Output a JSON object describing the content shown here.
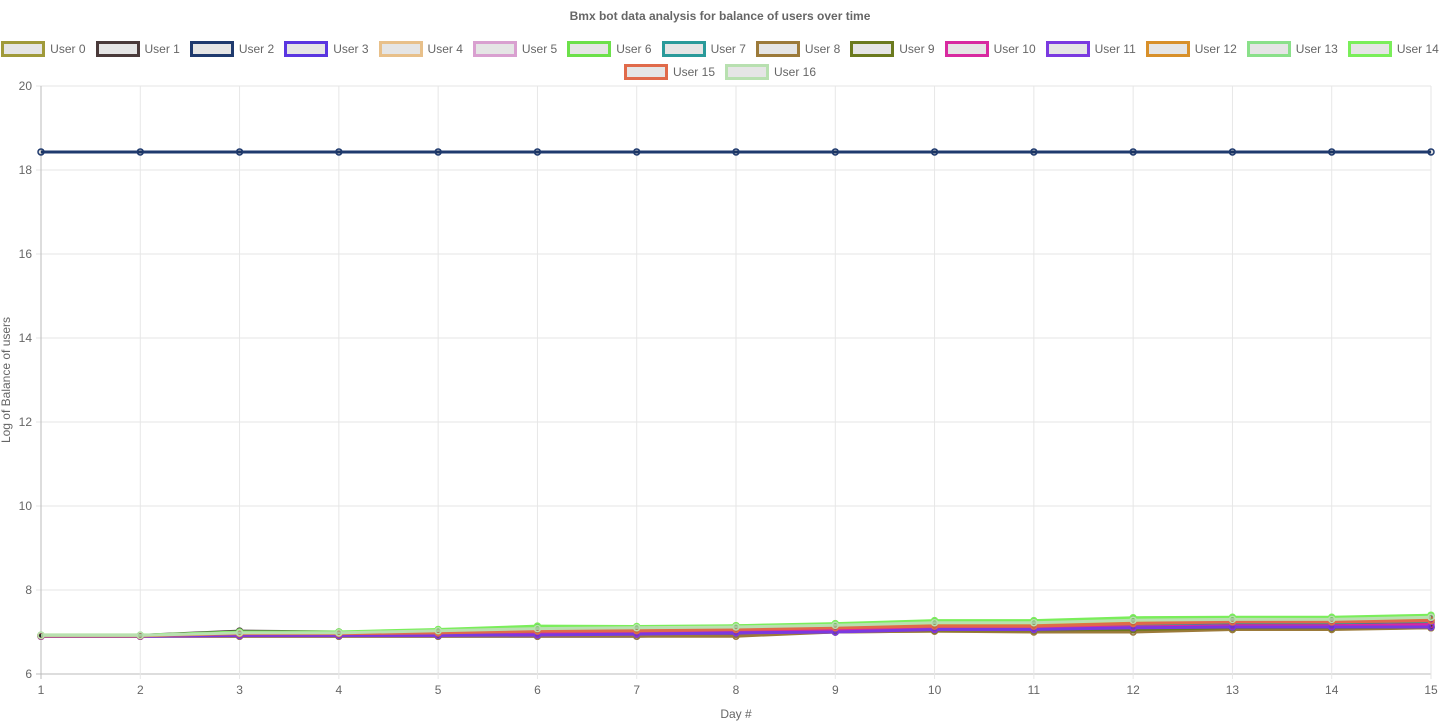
{
  "chart_data": {
    "type": "line",
    "title": "Bmx bot data analysis for balance of users over time",
    "xlabel": "Day #",
    "ylabel": "Log of Balance of users",
    "x": [
      1,
      2,
      3,
      4,
      5,
      6,
      7,
      8,
      9,
      10,
      11,
      12,
      13,
      14,
      15
    ],
    "ylim": [
      6,
      20
    ],
    "yticks": [
      6,
      8,
      10,
      12,
      14,
      16,
      18,
      20
    ],
    "grid": true,
    "legend_position": "top",
    "series": [
      {
        "name": "User 0",
        "color": "#a09a3a",
        "values": [
          6.91,
          6.91,
          6.93,
          6.93,
          6.93,
          6.95,
          6.95,
          6.96,
          7.0,
          7.02,
          7.02,
          7.05,
          7.06,
          7.08,
          7.1
        ]
      },
      {
        "name": "User 1",
        "color": "#4a3a3a",
        "values": [
          6.92,
          6.92,
          7.02,
          7.0,
          7.0,
          7.08,
          7.08,
          7.08,
          7.1,
          7.12,
          7.12,
          7.15,
          7.2,
          7.2,
          7.22
        ]
      },
      {
        "name": "User 2",
        "color": "#1f3a6e",
        "values": [
          18.43,
          18.43,
          18.43,
          18.43,
          18.43,
          18.43,
          18.43,
          18.43,
          18.43,
          18.43,
          18.43,
          18.43,
          18.43,
          18.43,
          18.43
        ]
      },
      {
        "name": "User 3",
        "color": "#5a36e0",
        "values": [
          6.9,
          6.9,
          6.9,
          6.9,
          6.9,
          6.9,
          6.9,
          6.95,
          7.0,
          7.05,
          7.05,
          7.08,
          7.15,
          7.15,
          7.15
        ]
      },
      {
        "name": "User 4",
        "color": "#e8c08a",
        "values": [
          6.92,
          6.92,
          6.98,
          6.98,
          7.02,
          7.06,
          7.08,
          7.15,
          7.18,
          7.22,
          7.22,
          7.28,
          7.3,
          7.3,
          7.35
        ]
      },
      {
        "name": "User 5",
        "color": "#d9a0d0",
        "values": [
          6.91,
          6.91,
          6.95,
          6.95,
          6.97,
          7.0,
          7.02,
          7.05,
          7.1,
          7.15,
          7.15,
          7.2,
          7.25,
          7.25,
          7.3
        ]
      },
      {
        "name": "User 6",
        "color": "#6ce04a",
        "values": [
          6.92,
          6.92,
          6.99,
          6.99,
          7.05,
          7.12,
          7.12,
          7.14,
          7.18,
          7.25,
          7.25,
          7.32,
          7.33,
          7.33,
          7.38
        ]
      },
      {
        "name": "User 7",
        "color": "#2a9a9a",
        "values": [
          6.91,
          6.91,
          6.96,
          6.96,
          6.98,
          7.02,
          7.04,
          7.06,
          7.08,
          7.12,
          7.12,
          7.18,
          7.22,
          7.22,
          7.25
        ]
      },
      {
        "name": "User 8",
        "color": "#9c7a3a",
        "values": [
          6.9,
          6.9,
          6.9,
          6.9,
          6.9,
          6.9,
          6.9,
          6.9,
          7.0,
          7.02,
          7.0,
          7.0,
          7.06,
          7.06,
          7.1
        ]
      },
      {
        "name": "User 9",
        "color": "#6b7a1e",
        "values": [
          6.91,
          6.91,
          6.95,
          6.95,
          6.95,
          7.0,
          7.0,
          7.02,
          7.04,
          7.05,
          7.05,
          7.06,
          7.1,
          7.1,
          7.12
        ]
      },
      {
        "name": "User 10",
        "color": "#d82aa0",
        "values": [
          6.9,
          6.9,
          6.92,
          6.92,
          6.92,
          6.95,
          6.98,
          7.0,
          7.05,
          7.08,
          7.1,
          7.12,
          7.15,
          7.15,
          7.18
        ]
      },
      {
        "name": "User 11",
        "color": "#7a3ae0",
        "values": [
          6.9,
          6.9,
          6.92,
          6.92,
          6.92,
          6.93,
          6.95,
          6.98,
          7.0,
          7.06,
          7.06,
          7.1,
          7.12,
          7.12,
          7.12
        ]
      },
      {
        "name": "User 12",
        "color": "#d8902a",
        "values": [
          6.91,
          6.91,
          6.97,
          6.97,
          6.99,
          7.03,
          7.05,
          7.1,
          7.15,
          7.18,
          7.18,
          7.22,
          7.25,
          7.25,
          7.28
        ]
      },
      {
        "name": "User 13",
        "color": "#8ae08a",
        "values": [
          6.92,
          6.92,
          6.99,
          6.99,
          7.04,
          7.1,
          7.1,
          7.13,
          7.17,
          7.24,
          7.24,
          7.3,
          7.32,
          7.32,
          7.37
        ]
      },
      {
        "name": "User 14",
        "color": "#7aee5a",
        "values": [
          6.92,
          6.92,
          7.0,
          7.0,
          7.06,
          7.14,
          7.13,
          7.15,
          7.2,
          7.27,
          7.27,
          7.34,
          7.35,
          7.35,
          7.4
        ]
      },
      {
        "name": "User 15",
        "color": "#e06a4a",
        "values": [
          6.91,
          6.91,
          6.96,
          6.96,
          6.98,
          7.02,
          7.03,
          7.06,
          7.1,
          7.14,
          7.14,
          7.2,
          7.24,
          7.24,
          7.27
        ]
      },
      {
        "name": "User 16",
        "color": "#b8e0b0",
        "values": [
          6.92,
          6.92,
          6.98,
          6.98,
          7.03,
          7.08,
          7.1,
          7.12,
          7.16,
          7.22,
          7.22,
          7.28,
          7.3,
          7.3,
          7.35
        ]
      }
    ]
  }
}
